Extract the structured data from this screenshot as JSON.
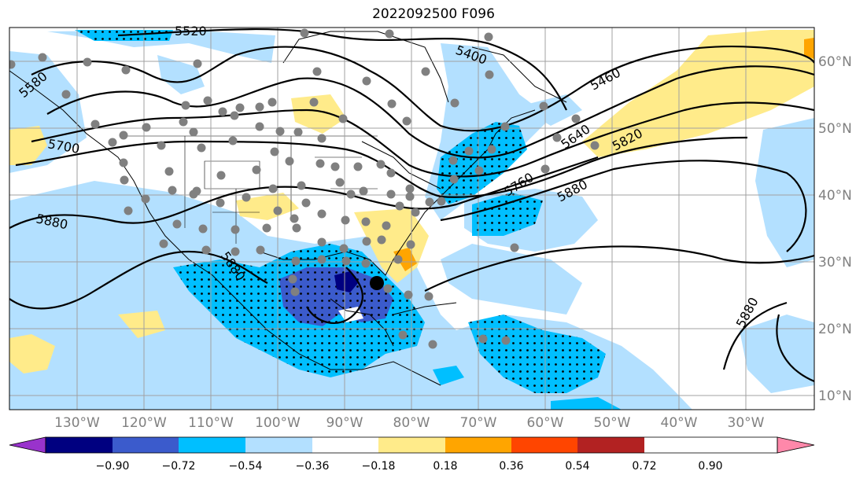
{
  "title": "2022092500 F096",
  "longitude_labels": [
    "130°W",
    "120°W",
    "110°W",
    "100°W",
    "90°W",
    "80°W",
    "70°W",
    "60°W",
    "50°W",
    "40°W",
    "30°W"
  ],
  "latitude_labels": [
    "60°N",
    "50°N",
    "40°N",
    "30°N",
    "20°N",
    "10°N"
  ],
  "contour_labels": [
    "5520",
    "5400",
    "5460",
    "5580",
    "5700",
    "5640",
    "5820",
    "5760",
    "5880",
    "5880",
    "5880",
    "5880"
  ],
  "colorbar": {
    "tick_labels": [
      "−0.90",
      "−0.72",
      "−0.54",
      "−0.36",
      "−0.18",
      "0.18",
      "0.36",
      "0.54",
      "0.72",
      "0.90"
    ],
    "colors": [
      "#9933cc",
      "#000080",
      "#3b5bcc",
      "#00bfff",
      "#b3e0ff",
      "#ffffff",
      "#ffeb8a",
      "#ffa500",
      "#ff4500",
      "#b22222",
      "#ff88aa"
    ]
  },
  "colors": {
    "land_light_blue": "#b3e0ff",
    "mid_blue": "#00bfff",
    "royal_blue": "#3b5bcc",
    "navy": "#000080",
    "yellow": "#ffeb8a",
    "orange": "#ffa500",
    "station_dot": "#808080",
    "storm_dot": "#000000"
  }
}
